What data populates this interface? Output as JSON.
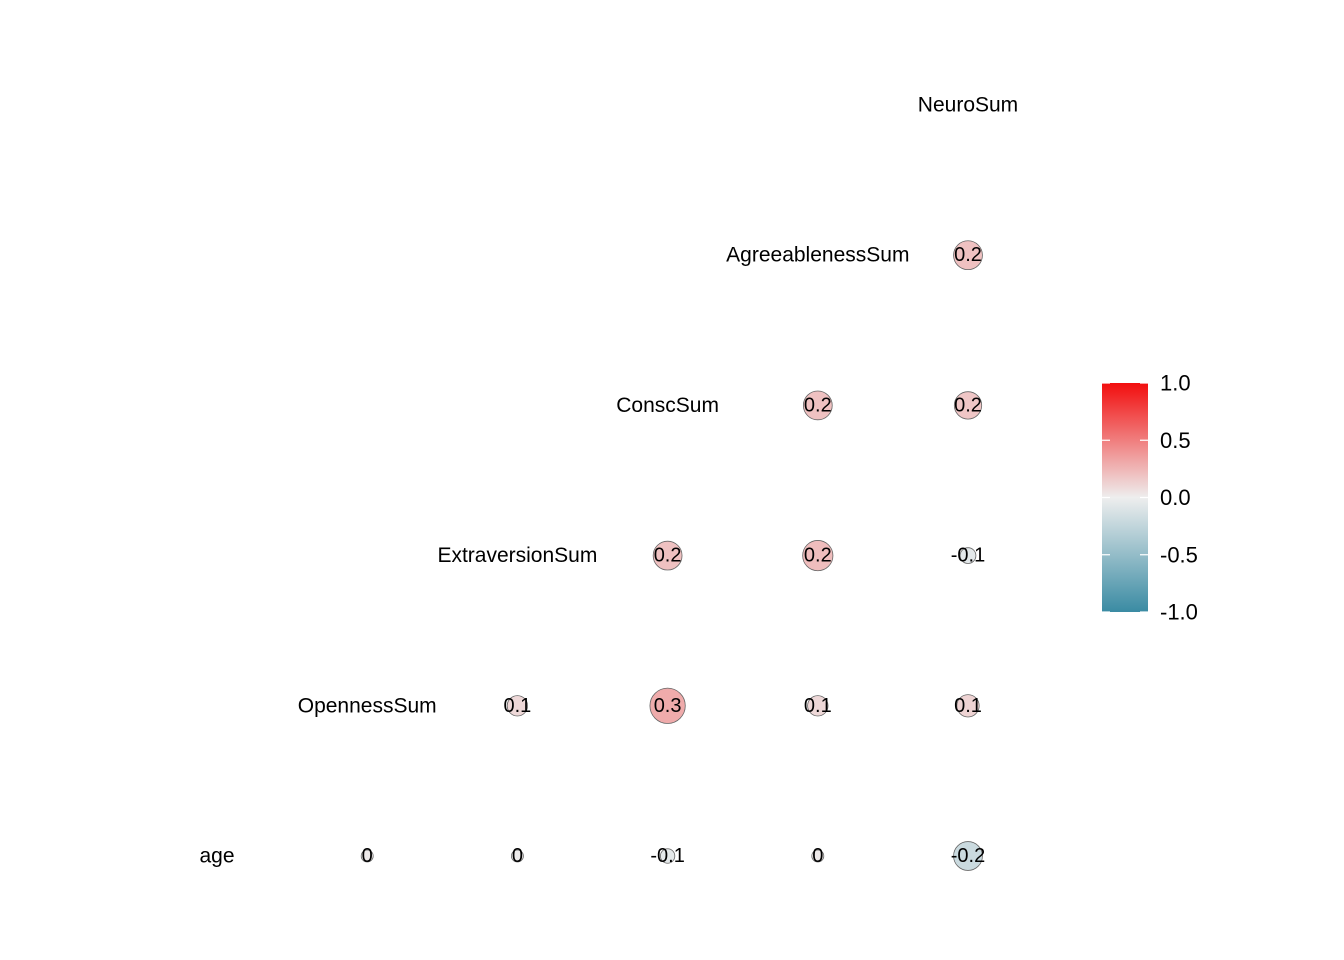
{
  "chart_data": {
    "type": "heatmap",
    "variables": [
      "age",
      "OpennessSum",
      "ExtraversionSum",
      "ConscSum",
      "AgreeablenessSum",
      "NeuroSum"
    ],
    "cells": [
      {
        "row": "OpennessSum",
        "col": "ExtraversionSum",
        "value": 0.1,
        "label": "0.1"
      },
      {
        "row": "ExtraversionSum",
        "col": "ConscSum",
        "value": 0.2,
        "label": "0.2"
      },
      {
        "row": "OpennessSum",
        "col": "ConscSum",
        "value": 0.3,
        "label": "0.3"
      },
      {
        "row": "ConscSum",
        "col": "AgreeablenessSum",
        "value": 0.2,
        "label": "0.2"
      },
      {
        "row": "ExtraversionSum",
        "col": "AgreeablenessSum",
        "value": 0.22,
        "label": "0.2"
      },
      {
        "row": "OpennessSum",
        "col": "AgreeablenessSum",
        "value": 0.1,
        "label": "0.1"
      },
      {
        "row": "AgreeablenessSum",
        "col": "NeuroSum",
        "value": 0.2,
        "label": "0.2"
      },
      {
        "row": "ConscSum",
        "col": "NeuroSum",
        "value": 0.18,
        "label": "0.2"
      },
      {
        "row": "ExtraversionSum",
        "col": "NeuroSum",
        "value": -0.06,
        "label": "-0.1"
      },
      {
        "row": "OpennessSum",
        "col": "NeuroSum",
        "value": 0.12,
        "label": "0.1"
      },
      {
        "row": "age",
        "col": "OpennessSum",
        "value": 0.02,
        "label": "0"
      },
      {
        "row": "age",
        "col": "ExtraversionSum",
        "value": 0.01,
        "label": "0"
      },
      {
        "row": "age",
        "col": "ConscSum",
        "value": -0.05,
        "label": "-0.1"
      },
      {
        "row": "age",
        "col": "AgreeablenessSum",
        "value": 0.02,
        "label": "0"
      },
      {
        "row": "age",
        "col": "NeuroSum",
        "value": -0.2,
        "label": "-0.2"
      }
    ],
    "legend": {
      "position": "right",
      "ticks": [
        "1.0",
        "0.5",
        "0.0",
        "-0.5",
        "-1.0"
      ],
      "range": [
        -1,
        1
      ],
      "colors": {
        "low": "#3A8BA3",
        "mid": "#EEEEEE",
        "high": "#F20E0E"
      }
    }
  }
}
